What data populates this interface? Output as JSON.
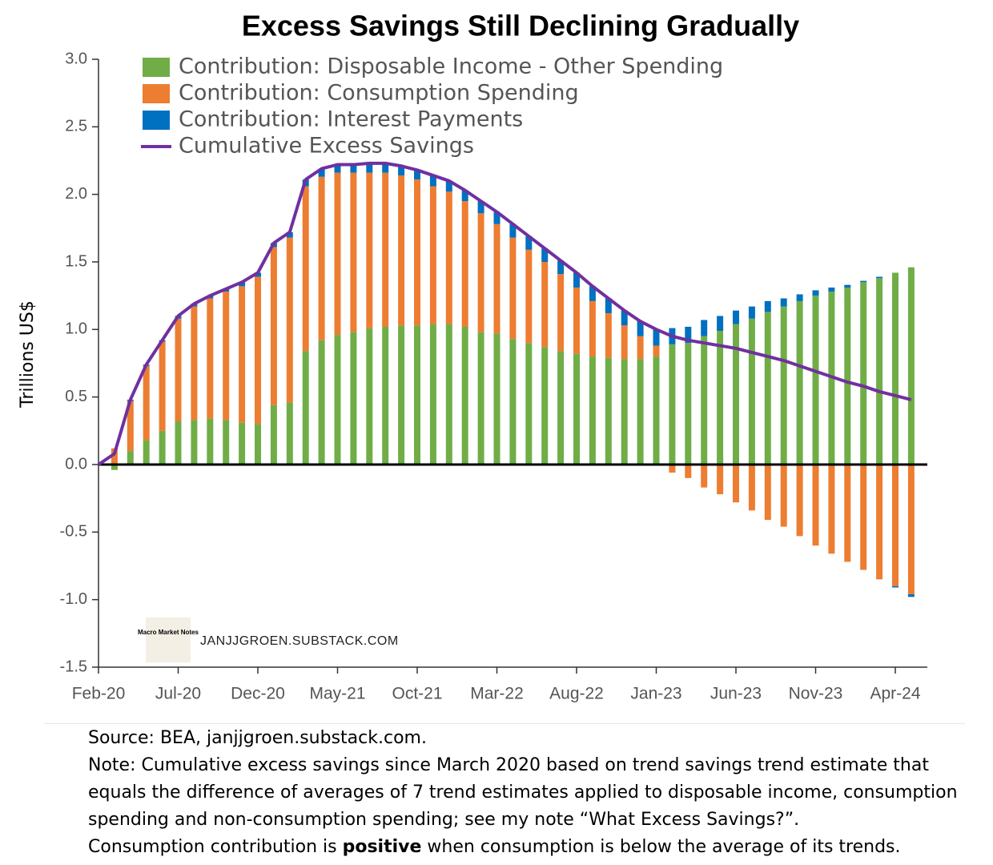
{
  "chart_data": {
    "type": "stacked_bar_line",
    "title": "Excess Savings Still Declining Gradually",
    "y_label": "Trillions US$",
    "categories": [
      "Feb-20",
      null,
      null,
      null,
      null,
      "Jul-20",
      null,
      null,
      null,
      null,
      "Dec-20",
      null,
      null,
      null,
      null,
      "May-21",
      null,
      null,
      null,
      null,
      "Oct-21",
      null,
      null,
      null,
      null,
      "Mar-22",
      null,
      null,
      null,
      null,
      "Aug-22",
      null,
      null,
      null,
      null,
      "Jan-23",
      null,
      null,
      null,
      null,
      "Jun-23",
      null,
      null,
      null,
      null,
      "Nov-23",
      null,
      null,
      null,
      null,
      "Apr-24",
      null
    ],
    "series": [
      {
        "name": "Contribution: Disposable Income - Other Spending",
        "kind": "bar",
        "color": "#70ad47",
        "values": [
          0,
          -0.04,
          0.1,
          0.18,
          0.25,
          0.32,
          0.33,
          0.34,
          0.33,
          0.31,
          0.3,
          0.44,
          0.46,
          0.84,
          0.92,
          0.96,
          0.98,
          1.01,
          1.02,
          1.03,
          1.03,
          1.04,
          1.04,
          1.02,
          0.98,
          0.97,
          0.93,
          0.9,
          0.87,
          0.84,
          0.82,
          0.8,
          0.79,
          0.78,
          0.78,
          0.8,
          0.89,
          0.9,
          0.95,
          0.99,
          1.04,
          1.08,
          1.13,
          1.17,
          1.21,
          1.25,
          1.28,
          1.31,
          1.35,
          1.38,
          1.42,
          1.46
        ]
      },
      {
        "name": "Contribution: Consumption Spending",
        "kind": "bar",
        "color": "#ed7d31",
        "values": [
          0,
          0.12,
          0.37,
          0.55,
          0.66,
          0.76,
          0.84,
          0.89,
          0.95,
          1.01,
          1.09,
          1.17,
          1.22,
          1.22,
          1.21,
          1.2,
          1.18,
          1.15,
          1.14,
          1.11,
          1.08,
          1.02,
          0.98,
          0.93,
          0.88,
          0.81,
          0.75,
          0.69,
          0.63,
          0.57,
          0.49,
          0.41,
          0.33,
          0.25,
          0.17,
          0.08,
          -0.06,
          -0.1,
          -0.17,
          -0.22,
          -0.28,
          -0.34,
          -0.41,
          -0.46,
          -0.53,
          -0.6,
          -0.66,
          -0.72,
          -0.78,
          -0.85,
          -0.9,
          -0.96
        ]
      },
      {
        "name": "Contribution: Interest Payments",
        "kind": "bar",
        "color": "#0070c0",
        "values": [
          0,
          0,
          0.01,
          0.01,
          0.01,
          0.02,
          0.02,
          0.02,
          0.02,
          0.03,
          0.03,
          0.03,
          0.04,
          0.05,
          0.06,
          0.06,
          0.06,
          0.07,
          0.07,
          0.07,
          0.07,
          0.08,
          0.08,
          0.08,
          0.09,
          0.09,
          0.1,
          0.1,
          0.1,
          0.1,
          0.11,
          0.11,
          0.11,
          0.11,
          0.11,
          0.12,
          0.12,
          0.12,
          0.12,
          0.11,
          0.1,
          0.09,
          0.08,
          0.06,
          0.05,
          0.04,
          0.03,
          0.02,
          0.01,
          0.01,
          -0.01,
          -0.02
        ]
      },
      {
        "name": "Cumulative Excess Savings",
        "kind": "line",
        "color": "#7030a0",
        "values": [
          0,
          0.08,
          0.48,
          0.74,
          0.92,
          1.1,
          1.19,
          1.25,
          1.3,
          1.35,
          1.42,
          1.64,
          1.72,
          2.11,
          2.19,
          2.22,
          2.22,
          2.23,
          2.23,
          2.21,
          2.18,
          2.14,
          2.1,
          2.03,
          1.95,
          1.87,
          1.78,
          1.69,
          1.6,
          1.51,
          1.42,
          1.32,
          1.23,
          1.14,
          1.06,
          1.0,
          0.95,
          0.92,
          0.9,
          0.88,
          0.86,
          0.83,
          0.8,
          0.77,
          0.73,
          0.69,
          0.65,
          0.61,
          0.58,
          0.54,
          0.51,
          0.48
        ]
      }
    ],
    "ylim": [
      -1.5,
      3.0
    ],
    "yticks": [
      {
        "value": -1.5,
        "label": "-1.5"
      },
      {
        "value": -1,
        "label": "-1.0"
      },
      {
        "value": -0.5,
        "label": "-0.5"
      },
      {
        "value": 0,
        "label": "0.0"
      },
      {
        "value": 0.5,
        "label": "0.5"
      },
      {
        "value": 1,
        "label": "1.0"
      },
      {
        "value": 1.5,
        "label": "1.5"
      },
      {
        "value": 2,
        "label": "2.0"
      },
      {
        "value": 2.5,
        "label": "2.5"
      },
      {
        "value": 3,
        "label": "3.0"
      }
    ],
    "legend": "top-left",
    "watermark": "JANJJGROEN.SUBSTACK.COM",
    "logo_text": "Macro Market Notes"
  },
  "footer": {
    "source": "Source: BEA, janjjgroen.substack.com.",
    "note": "Note: Cumulative excess savings since March 2020 based on trend savings trend estimate that equals the difference of averages of 7 trend estimates applied to disposable income, consumption spending and non-consumption spending; see my note “What Excess Savings?”.",
    "last_line": [
      "Consumption contribution is ",
      "positive",
      " when consumption is below the average of its trends."
    ]
  }
}
